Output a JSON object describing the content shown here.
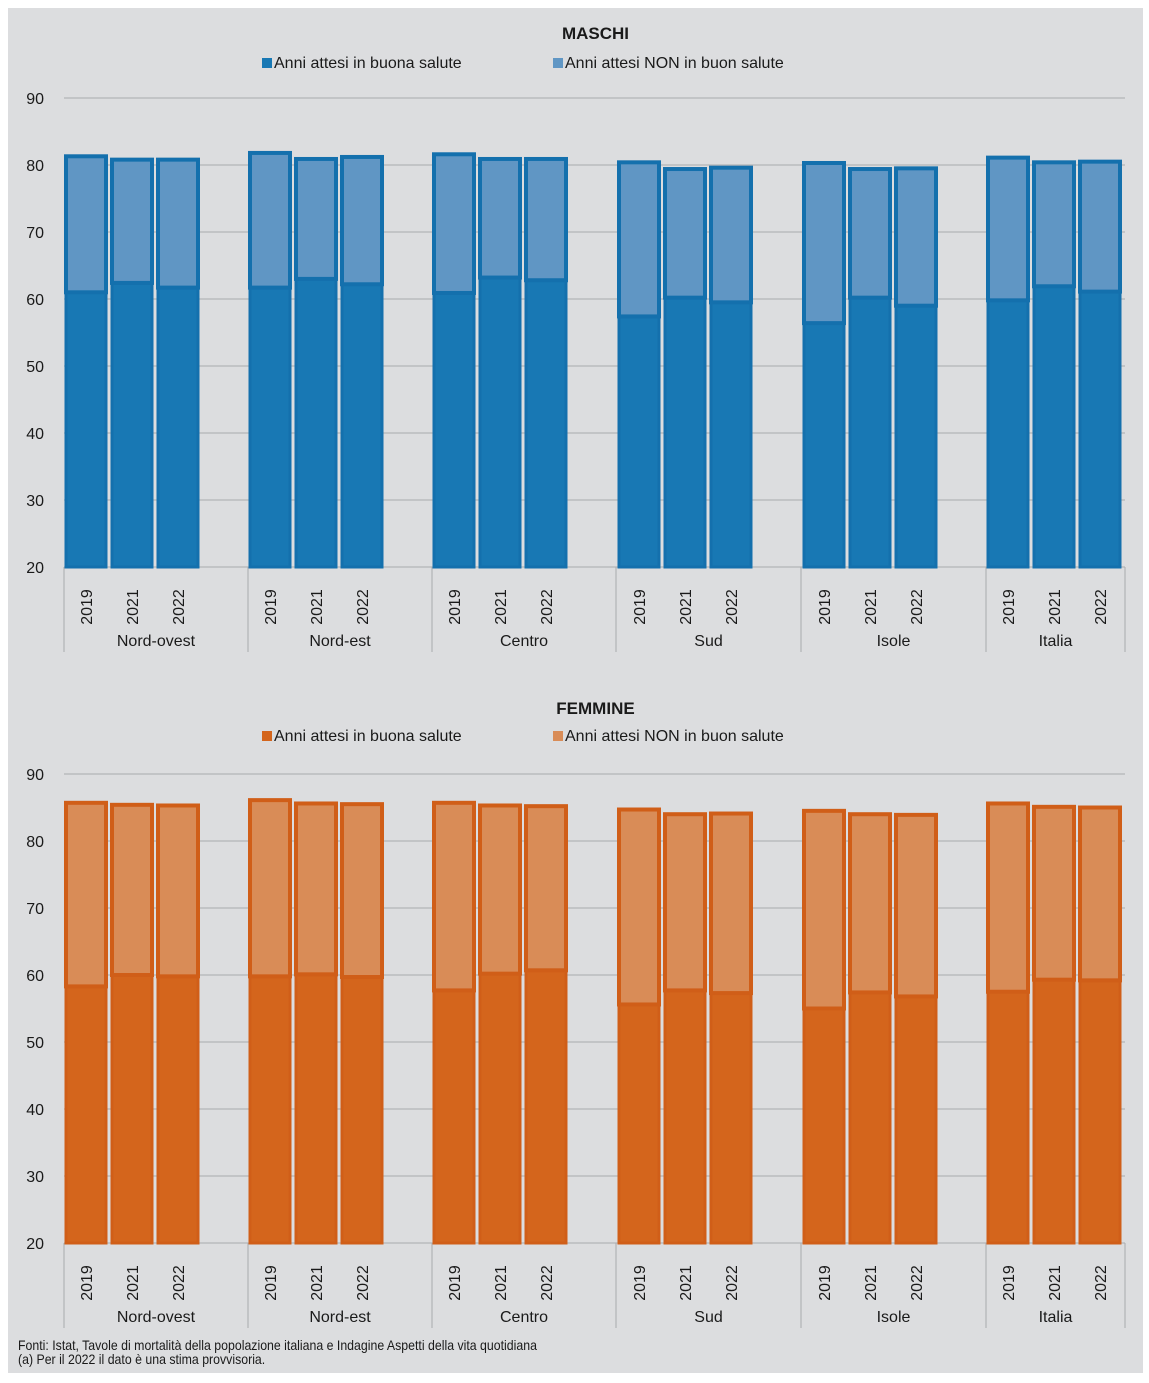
{
  "chart_data": [
    {
      "type": "bar",
      "stacked": true,
      "title": "MASCHI",
      "legend_placement": "top-center",
      "grid": true,
      "ylim": [
        20,
        90
      ],
      "yticks": [
        20,
        30,
        40,
        50,
        60,
        70,
        80,
        90
      ],
      "groups": [
        "Nord-ovest",
        "Nord-est",
        "Centro",
        "Sud",
        "Isole",
        "Italia"
      ],
      "years": [
        "2019",
        "2021",
        "2022"
      ],
      "series": [
        {
          "name": "Anni attesi in buona salute",
          "color": "#1878b4",
          "values": [
            [
              61.0,
              62.4,
              61.7
            ],
            [
              61.7,
              63.0,
              62.2
            ],
            [
              60.9,
              63.2,
              62.8
            ],
            [
              57.4,
              60.2,
              59.5
            ],
            [
              56.4,
              60.2,
              59.0
            ],
            [
              59.8,
              61.9,
              61.1
            ]
          ]
        },
        {
          "name": "Anni attesi NON in buon salute",
          "color": "#6096c4",
          "values": [
            [
              20.3,
              18.4,
              19.1
            ],
            [
              20.1,
              17.9,
              19.0
            ],
            [
              20.7,
              17.7,
              18.1
            ],
            [
              23.0,
              19.2,
              20.1
            ],
            [
              23.9,
              19.2,
              20.5
            ],
            [
              21.3,
              18.5,
              19.4
            ]
          ]
        }
      ]
    },
    {
      "type": "bar",
      "stacked": true,
      "title": "FEMMINE",
      "legend_placement": "top-center",
      "grid": true,
      "ylim": [
        20,
        90
      ],
      "yticks": [
        20,
        30,
        40,
        50,
        60,
        70,
        80,
        90
      ],
      "groups": [
        "Nord-ovest",
        "Nord-est",
        "Centro",
        "Sud",
        "Isole",
        "Italia"
      ],
      "years": [
        "2019",
        "2021",
        "2022"
      ],
      "series": [
        {
          "name": "Anni attesi in buona salute",
          "color": "#d4651c",
          "values": [
            [
              58.3,
              60.0,
              59.8
            ],
            [
              59.8,
              60.1,
              59.7
            ],
            [
              57.7,
              60.2,
              60.7
            ],
            [
              55.6,
              57.7,
              57.3
            ],
            [
              55.0,
              57.4,
              56.8
            ],
            [
              57.5,
              59.3,
              59.2
            ]
          ]
        },
        {
          "name": "Anni attesi NON in buon salute",
          "color": "#d98c57",
          "values": [
            [
              27.4,
              25.4,
              25.5
            ],
            [
              26.3,
              25.5,
              25.8
            ],
            [
              28.0,
              25.1,
              24.5
            ],
            [
              29.1,
              26.3,
              26.8
            ],
            [
              29.5,
              26.6,
              27.1
            ],
            [
              28.1,
              25.8,
              25.8
            ]
          ]
        }
      ]
    }
  ],
  "footnotes": [
    "Fonti: Istat, Tavole di mortalità della popolazione italiana e Indagine Aspetti della vita quotidiana",
    "(a) Per il 2022 il dato è una stima provvisoria."
  ]
}
